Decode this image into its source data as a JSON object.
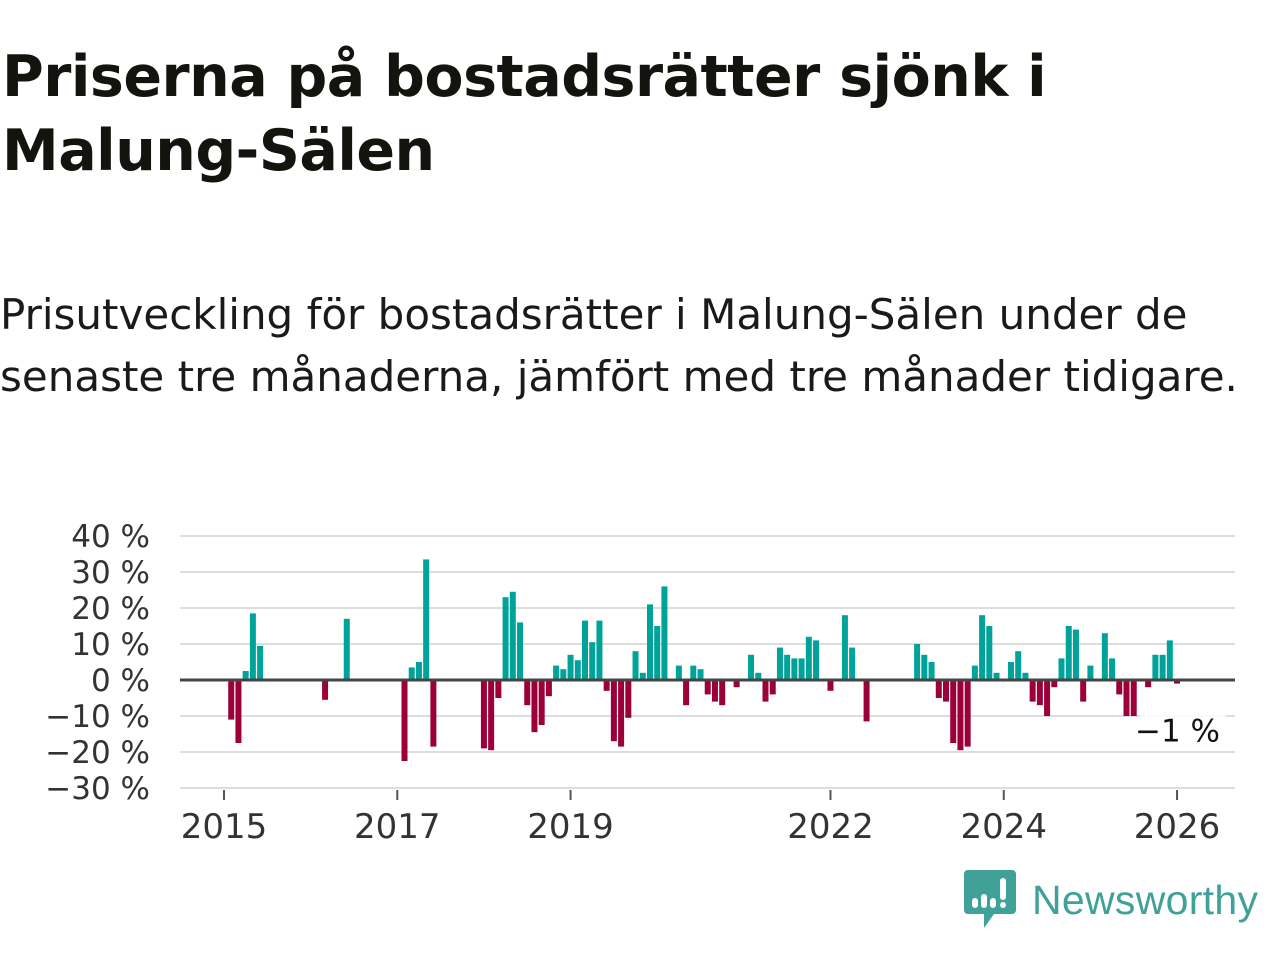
{
  "title": "Priserna på bostadsrätter sjönk i Malung-Sälen",
  "subtitle": "Prisutveckling för bostadsrätter i Malung-Sälen under de senaste tre månaderna, jämfört med tre månader tidigare.",
  "brand": "Newsworthy",
  "colors": {
    "positive": "#00a39a",
    "negative": "#9b0038",
    "grid": "#dddddd",
    "zero": "#444444",
    "brand": "#3fa197"
  },
  "chart_data": {
    "type": "bar",
    "title": "Priserna på bostadsrätter sjönk i Malung-Sälen",
    "xlabel": "",
    "ylabel": "",
    "ylim": [
      -30,
      40
    ],
    "yticks": [
      40,
      30,
      20,
      10,
      0,
      -10,
      -20,
      -30
    ],
    "ytick_labels": [
      "40 %",
      "30 %",
      "20 %",
      "10 %",
      "0 %",
      "−10 %",
      "−20 %",
      "−30 %"
    ],
    "xticks": [
      "2015",
      "2017",
      "2019",
      "2022",
      "2024",
      "2026"
    ],
    "grid": true,
    "annotation": "−1 %",
    "start": "2015-01",
    "series": [
      {
        "name": "Prisutveckling (%)",
        "points": [
          [
            "2015-02",
            -11
          ],
          [
            "2015-03",
            -17.5
          ],
          [
            "2015-04",
            2.5
          ],
          [
            "2015-05",
            18.5
          ],
          [
            "2015-06",
            9.5
          ],
          [
            "2016-03",
            -5.5
          ],
          [
            "2016-06",
            17
          ],
          [
            "2017-02",
            -22.5
          ],
          [
            "2017-03",
            3.5
          ],
          [
            "2017-04",
            5
          ],
          [
            "2017-05",
            33.5
          ],
          [
            "2017-06",
            -18.5
          ],
          [
            "2018-01",
            -19
          ],
          [
            "2018-02",
            -19.5
          ],
          [
            "2018-03",
            -5
          ],
          [
            "2018-04",
            23
          ],
          [
            "2018-05",
            24.5
          ],
          [
            "2018-06",
            16
          ],
          [
            "2018-07",
            -7
          ],
          [
            "2018-08",
            -14.5
          ],
          [
            "2018-09",
            -12.5
          ],
          [
            "2018-10",
            -4.5
          ],
          [
            "2018-11",
            4
          ],
          [
            "2018-12",
            3
          ],
          [
            "2019-01",
            7
          ],
          [
            "2019-02",
            5.5
          ],
          [
            "2019-03",
            16.5
          ],
          [
            "2019-04",
            10.5
          ],
          [
            "2019-05",
            16.5
          ],
          [
            "2019-06",
            -3
          ],
          [
            "2019-07",
            -17
          ],
          [
            "2019-08",
            -18.5
          ],
          [
            "2019-09",
            -10.5
          ],
          [
            "2019-10",
            8
          ],
          [
            "2019-11",
            2
          ],
          [
            "2019-12",
            21
          ],
          [
            "2020-01",
            15
          ],
          [
            "2020-02",
            26
          ],
          [
            "2020-04",
            4
          ],
          [
            "2020-05",
            -7
          ],
          [
            "2020-06",
            4
          ],
          [
            "2020-07",
            3
          ],
          [
            "2020-08",
            -4
          ],
          [
            "2020-09",
            -6
          ],
          [
            "2020-10",
            -7
          ],
          [
            "2020-12",
            -2
          ],
          [
            "2021-02",
            7
          ],
          [
            "2021-03",
            2
          ],
          [
            "2021-04",
            -6
          ],
          [
            "2021-05",
            -4
          ],
          [
            "2021-06",
            9
          ],
          [
            "2021-07",
            7
          ],
          [
            "2021-08",
            6
          ],
          [
            "2021-09",
            6
          ],
          [
            "2021-10",
            12
          ],
          [
            "2021-11",
            11
          ],
          [
            "2022-01",
            -3
          ],
          [
            "2022-03",
            18
          ],
          [
            "2022-04",
            9
          ],
          [
            "2022-06",
            -11.5
          ],
          [
            "2023-01",
            10
          ],
          [
            "2023-02",
            7
          ],
          [
            "2023-03",
            5
          ],
          [
            "2023-04",
            -5
          ],
          [
            "2023-05",
            -6
          ],
          [
            "2023-06",
            -17.5
          ],
          [
            "2023-07",
            -19.5
          ],
          [
            "2023-08",
            -18.5
          ],
          [
            "2023-09",
            4
          ],
          [
            "2023-10",
            18
          ],
          [
            "2023-11",
            15
          ],
          [
            "2023-12",
            2
          ],
          [
            "2024-02",
            5
          ],
          [
            "2024-03",
            8
          ],
          [
            "2024-04",
            2
          ],
          [
            "2024-05",
            -6
          ],
          [
            "2024-06",
            -7
          ],
          [
            "2024-07",
            -10
          ],
          [
            "2024-08",
            -2
          ],
          [
            "2024-09",
            6
          ],
          [
            "2024-10",
            15
          ],
          [
            "2024-11",
            14
          ],
          [
            "2024-12",
            -6
          ],
          [
            "2025-01",
            4
          ],
          [
            "2025-03",
            13
          ],
          [
            "2025-04",
            6
          ],
          [
            "2025-05",
            -4
          ],
          [
            "2025-06",
            -10
          ],
          [
            "2025-07",
            -10
          ],
          [
            "2025-09",
            -2
          ],
          [
            "2025-10",
            7
          ],
          [
            "2025-11",
            7
          ],
          [
            "2025-12",
            11
          ],
          [
            "2026-01",
            -1
          ]
        ]
      }
    ]
  }
}
